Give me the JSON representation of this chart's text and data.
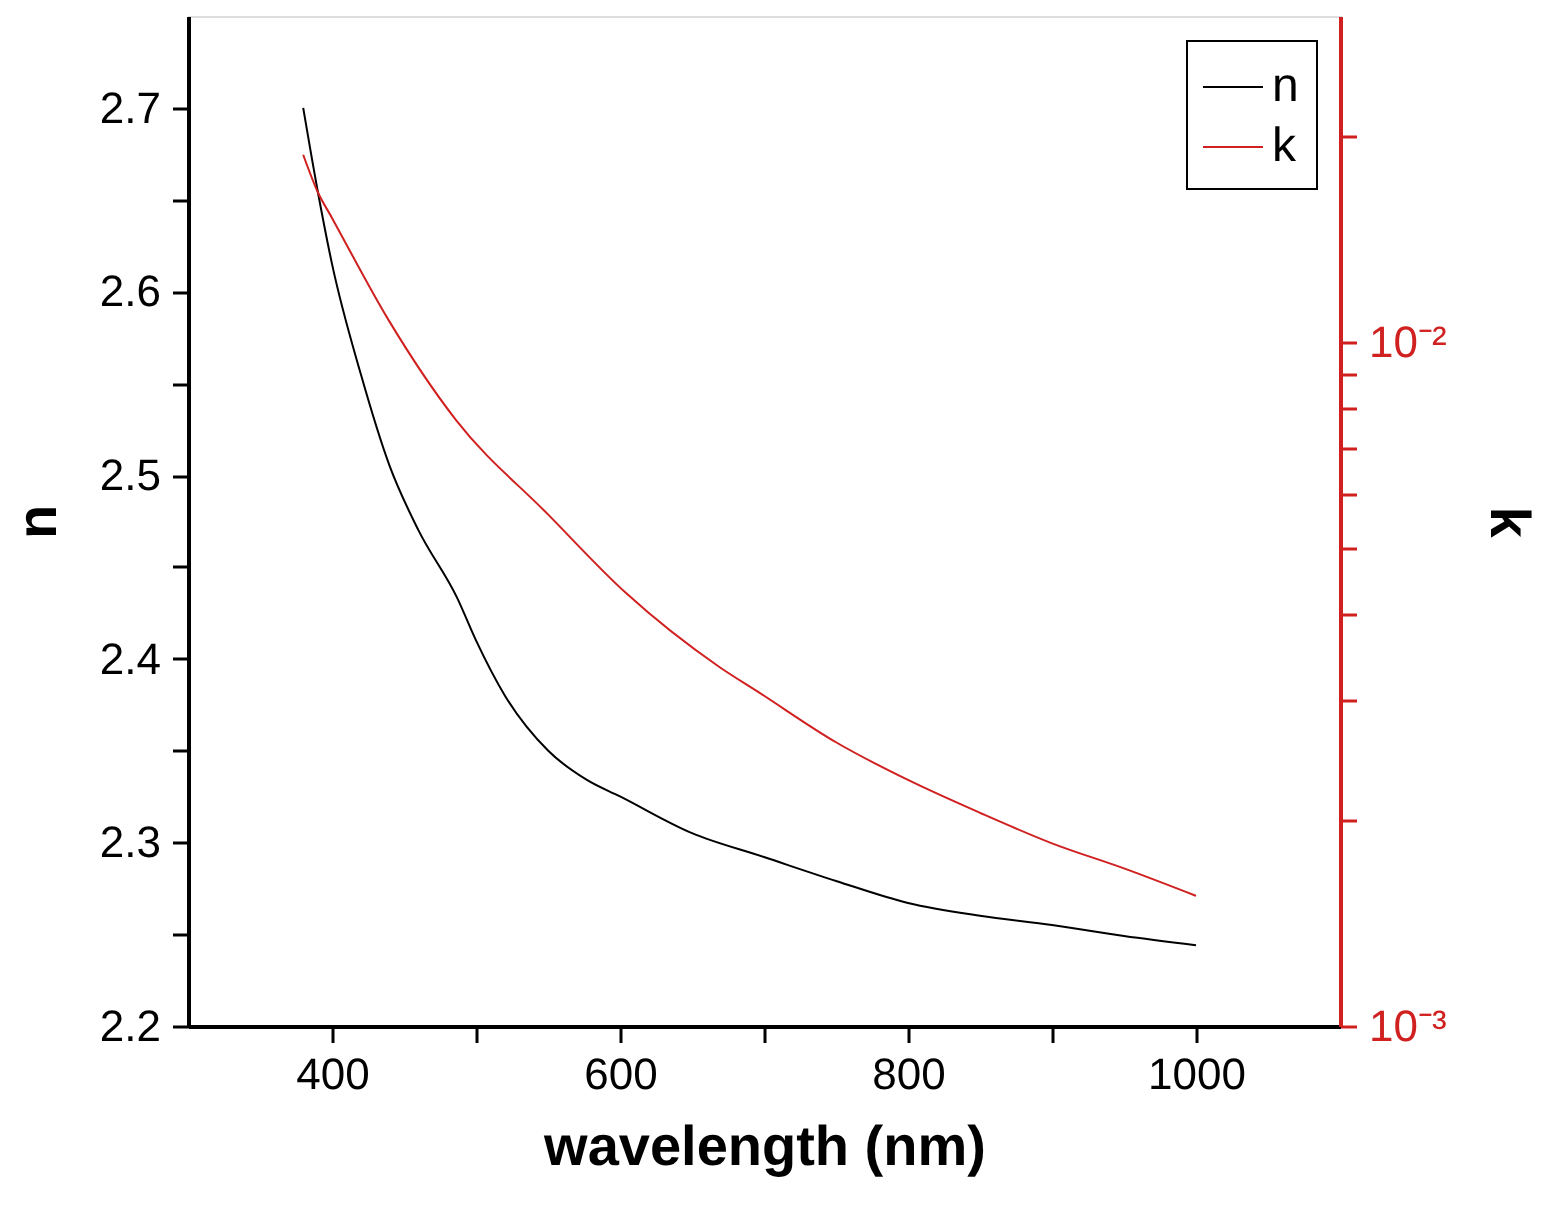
{
  "chart_data": {
    "type": "line",
    "xlabel": "wavelength (nm)",
    "ylabel": "n",
    "y2label": "k",
    "xlim": [
      300,
      1100
    ],
    "xticks": [
      400,
      {
        "value": 500,
        "label": null
      },
      600,
      {
        "value": 700,
        "label": null
      },
      800,
      {
        "value": 900,
        "label": null
      },
      1000
    ],
    "ylim": [
      2.2,
      2.75
    ],
    "yticks": [
      2.2,
      {
        "value": 2.25,
        "label": null
      },
      2.3,
      {
        "value": 2.35,
        "label": null
      },
      2.4,
      {
        "value": 2.45,
        "label": null
      },
      2.5,
      {
        "value": 2.55,
        "label": null
      },
      2.6,
      {
        "value": 2.65,
        "label": null
      },
      2.7
    ],
    "y2lim": [
      0.001,
      0.03
    ],
    "y2ticks": [
      {
        "value": 0.001,
        "label": "10⁻³"
      },
      {
        "value": 0.002,
        "label": null
      },
      {
        "value": 0.003,
        "label": null
      },
      {
        "value": 0.004,
        "label": null
      },
      {
        "value": 0.005,
        "label": null
      },
      {
        "value": 0.006,
        "label": null
      },
      {
        "value": 0.007,
        "label": null
      },
      {
        "value": 0.008,
        "label": null
      },
      {
        "value": 0.009,
        "label": null
      },
      {
        "value": 0.01,
        "label": "10⁻²"
      },
      {
        "value": 0.02,
        "label": null
      }
    ],
    "log": "y2",
    "legend": "top right",
    "line_style": "solid",
    "series": [
      {
        "name": "n",
        "color": "#000000",
        "x": [
          380,
          390,
          400,
          420,
          440,
          460,
          487,
          500,
          520,
          550,
          577,
          600,
          650,
          700,
          750,
          800,
          850,
          900,
          950,
          1000
        ],
        "values": [
          2.7,
          2.655,
          2.615,
          2.555,
          2.505,
          2.47,
          2.433,
          2.41,
          2.38,
          2.35,
          2.334,
          2.325,
          2.305,
          2.292,
          2.279,
          2.267,
          2.26,
          2.255,
          2.249,
          2.244
        ]
      },
      {
        "name": "k",
        "color": "#d02020",
        "axis": "y2",
        "x": [
          380,
          390,
          400,
          439,
          486,
          550,
          604,
          669,
          697,
          750,
          800,
          850,
          900,
          950,
          1000
        ],
        "values": [
          0.0188,
          0.0166,
          0.0152,
          0.0108,
          0.0077,
          0.0056,
          0.0043,
          0.00335,
          0.00307,
          0.0026,
          0.00229,
          0.00205,
          0.00185,
          0.0017,
          0.00155
        ]
      }
    ]
  }
}
